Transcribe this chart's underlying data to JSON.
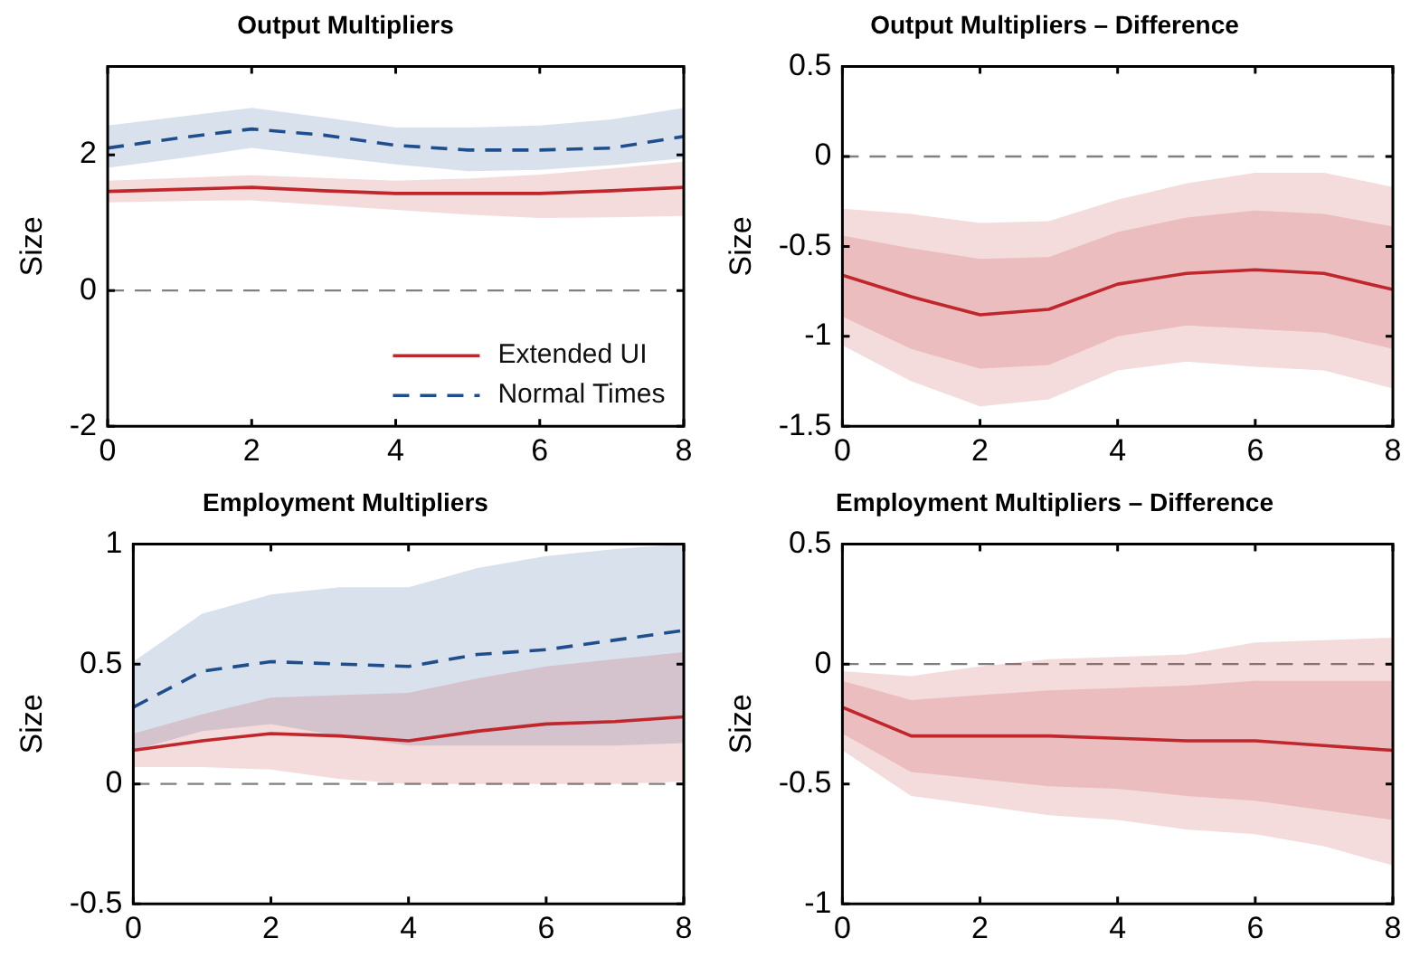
{
  "chart_data": [
    {
      "type": "line",
      "title": "Output Multipliers",
      "ylabel": "Size",
      "x": [
        0,
        1,
        2,
        3,
        4,
        5,
        6,
        7,
        8
      ],
      "xlim": [
        0,
        8
      ],
      "xticks": [
        0,
        2,
        4,
        6,
        8
      ],
      "ylim": [
        -2,
        3.3
      ],
      "yticks": [
        -2,
        0,
        2
      ],
      "legend": "bottom right",
      "marker": "none",
      "grid": false,
      "ref_lines": [
        {
          "axis": "y",
          "value": 0,
          "color": "#808080",
          "line_style": "dashed"
        }
      ],
      "series": [
        {
          "name": "Extended UI",
          "color": "#c0272d",
          "line_style": "solid",
          "values": [
            1.46,
            1.49,
            1.52,
            1.47,
            1.43,
            1.43,
            1.43,
            1.47,
            1.52
          ],
          "lower": [
            1.3,
            1.32,
            1.33,
            1.26,
            1.19,
            1.12,
            1.07,
            1.08,
            1.1
          ],
          "upper": [
            1.62,
            1.66,
            1.7,
            1.66,
            1.62,
            1.65,
            1.71,
            1.8,
            1.9
          ]
        },
        {
          "name": "Normal Times",
          "color": "#1f4e8c",
          "line_style": "dashed",
          "values": [
            2.1,
            2.25,
            2.38,
            2.29,
            2.14,
            2.07,
            2.07,
            2.1,
            2.27
          ],
          "lower": [
            1.81,
            1.95,
            2.1,
            1.98,
            1.86,
            1.76,
            1.78,
            1.85,
            1.95
          ],
          "upper": [
            2.43,
            2.56,
            2.69,
            2.55,
            2.4,
            2.4,
            2.43,
            2.52,
            2.69
          ]
        }
      ]
    },
    {
      "type": "line",
      "title": "Output Multipliers – Difference",
      "ylabel": "Size",
      "x": [
        0,
        1,
        2,
        3,
        4,
        5,
        6,
        7,
        8
      ],
      "xlim": [
        0,
        8
      ],
      "xticks": [
        0,
        2,
        4,
        6,
        8
      ],
      "ylim": [
        -1.5,
        0.5
      ],
      "yticks": [
        -1.5,
        -1,
        -0.5,
        0,
        0.5
      ],
      "marker": "none",
      "grid": false,
      "ref_lines": [
        {
          "axis": "y",
          "value": 0,
          "color": "#808080",
          "line_style": "dashed"
        }
      ],
      "series": [
        {
          "color": "#c0272d",
          "line_style": "solid",
          "values": [
            -0.66,
            -0.78,
            -0.88,
            -0.85,
            -0.71,
            -0.65,
            -0.63,
            -0.65,
            -0.74
          ],
          "lower": [
            -0.89,
            -1.07,
            -1.18,
            -1.16,
            -1.0,
            -0.94,
            -0.96,
            -0.98,
            -1.07
          ],
          "upper": [
            -0.44,
            -0.51,
            -0.57,
            -0.56,
            -0.42,
            -0.34,
            -0.3,
            -0.32,
            -0.39
          ]
        },
        {
          "color": "#c0272d",
          "values": [
            null,
            null,
            null,
            null,
            null,
            null,
            null,
            null,
            null
          ],
          "lower": [
            -1.05,
            -1.25,
            -1.39,
            -1.35,
            -1.19,
            -1.14,
            -1.17,
            -1.19,
            -1.29
          ],
          "upper": [
            -0.29,
            -0.32,
            -0.37,
            -0.36,
            -0.24,
            -0.15,
            -0.09,
            -0.09,
            -0.17
          ]
        }
      ]
    },
    {
      "type": "line",
      "title": "Employment Multipliers",
      "ylabel": "Size",
      "x": [
        0,
        1,
        2,
        3,
        4,
        5,
        6,
        7,
        8
      ],
      "xlim": [
        0,
        8
      ],
      "xticks": [
        0,
        2,
        4,
        6,
        8
      ],
      "ylim": [
        -0.5,
        1
      ],
      "yticks": [
        -0.5,
        0,
        0.5,
        1
      ],
      "marker": "none",
      "grid": false,
      "ref_lines": [
        {
          "axis": "y",
          "value": 0,
          "color": "#808080",
          "line_style": "dashed"
        }
      ],
      "series": [
        {
          "color": "#c0272d",
          "line_style": "solid",
          "values": [
            0.14,
            0.18,
            0.21,
            0.2,
            0.18,
            0.22,
            0.25,
            0.26,
            0.28
          ],
          "lower": [
            0.07,
            0.07,
            0.06,
            0.02,
            0,
            0,
            0,
            0,
            0.01
          ],
          "upper": [
            0.21,
            0.29,
            0.36,
            0.37,
            0.38,
            0.44,
            0.49,
            0.52,
            0.55
          ]
        },
        {
          "color": "#1f4e8c",
          "line_style": "dashed",
          "values": [
            0.32,
            0.47,
            0.51,
            0.5,
            0.49,
            0.54,
            0.56,
            0.6,
            0.64
          ],
          "lower": [
            0.14,
            0.22,
            0.25,
            0.2,
            0.16,
            0.16,
            0.16,
            0.16,
            0.17
          ],
          "upper": [
            0.51,
            0.71,
            0.79,
            0.82,
            0.82,
            0.9,
            0.95,
            0.98,
            1.0
          ]
        }
      ]
    },
    {
      "type": "line",
      "title": "Employment Multipliers – Difference",
      "ylabel": "Size",
      "x": [
        0,
        1,
        2,
        3,
        4,
        5,
        6,
        7,
        8
      ],
      "xlim": [
        0,
        8
      ],
      "xticks": [
        0,
        2,
        4,
        6,
        8
      ],
      "ylim": [
        -1,
        0.5
      ],
      "yticks": [
        -1,
        -0.5,
        0,
        0.5
      ],
      "marker": "none",
      "grid": false,
      "ref_lines": [
        {
          "axis": "y",
          "value": 0,
          "color": "#808080",
          "line_style": "dashed"
        }
      ],
      "series": [
        {
          "color": "#c0272d",
          "line_style": "solid",
          "values": [
            -0.18,
            -0.3,
            -0.3,
            -0.3,
            -0.31,
            -0.32,
            -0.32,
            -0.34,
            -0.36
          ],
          "lower": [
            -0.29,
            -0.45,
            -0.48,
            -0.51,
            -0.52,
            -0.55,
            -0.57,
            -0.61,
            -0.65
          ],
          "upper": [
            -0.07,
            -0.15,
            -0.13,
            -0.11,
            -0.1,
            -0.09,
            -0.07,
            -0.07,
            -0.07
          ]
        },
        {
          "color": "#c0272d",
          "values": [
            null,
            null,
            null,
            null,
            null,
            null,
            null,
            null,
            null
          ],
          "lower": [
            -0.36,
            -0.55,
            -0.59,
            -0.63,
            -0.65,
            -0.69,
            -0.71,
            -0.76,
            -0.84
          ],
          "upper": [
            -0.03,
            -0.05,
            -0.01,
            0.02,
            0.03,
            0.04,
            0.09,
            0.1,
            0.11
          ]
        }
      ]
    }
  ]
}
